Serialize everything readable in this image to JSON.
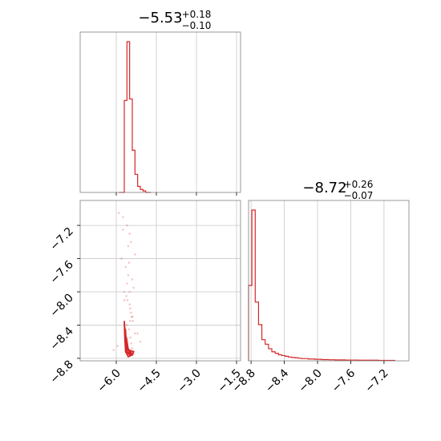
{
  "chart_data": {
    "type": "corner",
    "color": "#d62728",
    "parameters": [
      {
        "title_main": "−5.53",
        "title_sup": "+0.18",
        "title_sub": "−0.10",
        "range": [
          -7.35,
          -1.35
        ],
        "ticks": [
          -6.0,
          -4.5,
          -3.0,
          -1.5
        ],
        "tick_labels": [
          "−6.0",
          "−4.5",
          "−3.0",
          "−1.5"
        ]
      },
      {
        "title_main": "−8.72",
        "title_sup": "+0.26",
        "title_sub": "−0.07",
        "range": [
          -8.83,
          -6.9
        ],
        "ticks": [
          -8.8,
          -8.4,
          -8.0,
          -7.6,
          -7.2
        ],
        "tick_labels": [
          "−8.8",
          "−8.4",
          "−8.0",
          "−7.6",
          "−7.2"
        ]
      }
    ],
    "hist_1": {
      "edges": [
        -5.9,
        -5.8,
        -5.7,
        -5.6,
        -5.5,
        -5.4,
        -5.3,
        -5.2,
        -5.1,
        -5.0,
        -4.9,
        -4.8,
        -4.7
      ],
      "counts": [
        0,
        0,
        0.61,
        1.0,
        0.62,
        0.28,
        0.12,
        0.04,
        0.02,
        0.01,
        0,
        0
      ]
    },
    "hist_2": {
      "edges": [
        -8.83,
        -8.79,
        -8.75,
        -8.71,
        -8.67,
        -8.63,
        -8.59,
        -8.55,
        -8.51,
        -8.47,
        -8.43,
        -8.39,
        -8.35,
        -8.31,
        -8.27,
        -8.23,
        -8.19,
        -8.15,
        -8.11,
        -8.07,
        -8.03,
        -7.99,
        -7.95,
        -7.91,
        -7.87,
        -7.83,
        -7.79,
        -7.75,
        -7.71,
        -7.67,
        -7.63,
        -7.59,
        -7.55,
        -7.51,
        -7.47,
        -7.43,
        -7.39,
        -7.35,
        -7.31,
        -7.27,
        -7.23,
        -7.19,
        -7.15,
        -7.11,
        -7.07
      ],
      "counts": [
        0.5,
        1.0,
        0.39,
        0.24,
        0.14,
        0.11,
        0.08,
        0.06,
        0.05,
        0.04,
        0.035,
        0.03,
        0.025,
        0.022,
        0.02,
        0.017,
        0.015,
        0.015,
        0.012,
        0.012,
        0.01,
        0.01,
        0.008,
        0.008,
        0.007,
        0.007,
        0.006,
        0.006,
        0.006,
        0.005,
        0.005,
        0.005,
        0.005,
        0.004,
        0.004,
        0.004,
        0.004,
        0.004,
        0.004,
        0.003,
        0.003,
        0.003,
        0.003,
        0.003
      ]
    },
    "scatter": {
      "x": [
        -5.9,
        -5.75,
        -5.6,
        -5.5,
        -5.45,
        -5.3,
        -5.8,
        -5.65,
        -5.55,
        -5.4,
        -5.35,
        -5.7,
        -5.62,
        -5.58,
        -5.5,
        -5.48,
        -5.45,
        -5.42,
        -5.38,
        -5.6,
        -5.2,
        -5.1,
        -5.95,
        -6.1,
        -5.52,
        -5.47,
        -5.44,
        -5.41,
        -5.39,
        -5.36,
        -5.55,
        -5.6,
        -5.5,
        -5.4,
        -5.3,
        -5.7,
        -5.75,
        -5.65,
        -5.52,
        -5.48
      ],
      "y": [
        -7.05,
        -7.1,
        -7.2,
        -7.3,
        -7.4,
        -7.55,
        -7.6,
        -7.7,
        -7.8,
        -7.85,
        -7.95,
        -8.0,
        -8.05,
        -8.1,
        -8.15,
        -8.2,
        -8.25,
        -8.3,
        -8.35,
        -8.4,
        -8.5,
        -8.6,
        -8.65,
        -8.7,
        -8.45,
        -8.55,
        -8.62,
        -8.68,
        -8.72,
        -8.75,
        -7.45,
        -7.9,
        -8.0,
        -8.3,
        -8.5,
        -8.1,
        -7.25,
        -8.45,
        -7.65,
        -8.35
      ]
    },
    "contours": [
      {
        "x": [
          -5.7,
          -5.68,
          -5.65,
          -5.55,
          -5.4,
          -5.35,
          -5.55,
          -5.65,
          -5.7
        ],
        "y": [
          -8.35,
          -8.55,
          -8.72,
          -8.78,
          -8.76,
          -8.72,
          -8.7,
          -8.6,
          -8.35
        ]
      },
      {
        "x": [
          -5.66,
          -5.64,
          -5.6,
          -5.5,
          -5.42,
          -5.55,
          -5.62,
          -5.66
        ],
        "y": [
          -8.45,
          -8.6,
          -8.72,
          -8.76,
          -8.74,
          -8.7,
          -8.62,
          -8.45
        ]
      },
      {
        "x": [
          -5.62,
          -5.58,
          -5.5,
          -5.46,
          -5.56,
          -5.62
        ],
        "y": [
          -8.55,
          -8.68,
          -8.74,
          -8.73,
          -8.68,
          -8.55
        ]
      }
    ]
  }
}
